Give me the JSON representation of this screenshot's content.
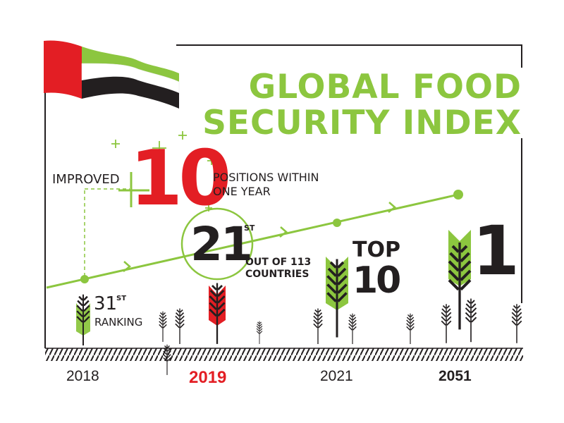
{
  "title": {
    "line1": "GLOBAL FOOD",
    "line2": "SECURITY INDEX"
  },
  "improvement": {
    "prefix": "IMPROVED",
    "number": "10",
    "suffix_line1": "POSITIONS WITHIN",
    "suffix_line2": "ONE YEAR"
  },
  "rank_2019": {
    "number": "21",
    "suffix": "ST",
    "note_line1": "OUT OF 113",
    "note_line2": "COUNTRIES"
  },
  "rank_2018": {
    "number": "31",
    "suffix": "ST",
    "label": "RANKING"
  },
  "goal_2021": {
    "line1": "TOP",
    "line2": "10"
  },
  "goal_2051": {
    "number": "1"
  },
  "years": [
    {
      "label": "2018",
      "style": "normal"
    },
    {
      "label": "2019",
      "style": "red"
    },
    {
      "label": "2021",
      "style": "normal"
    },
    {
      "label": "2051",
      "style": "bold"
    }
  ],
  "colors": {
    "green": "#8cc63f",
    "red": "#e31e24",
    "dark": "#231f20"
  },
  "icons": [
    "uae-flag-icon",
    "wheat-icon",
    "arrow-icon",
    "plus-icon"
  ]
}
